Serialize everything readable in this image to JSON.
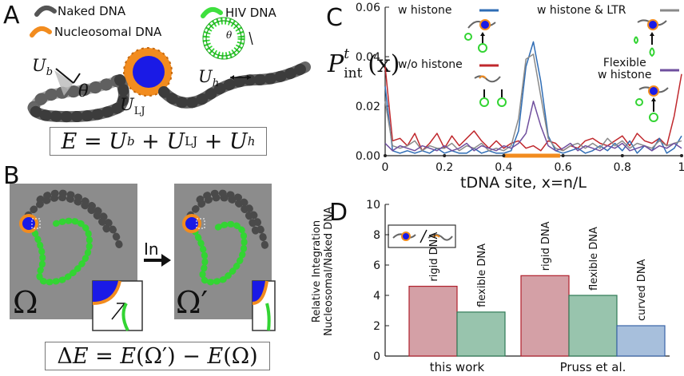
{
  "panel_a": {
    "letter": "A",
    "legend": {
      "naked": "Naked DNA",
      "nucleosomal": "Nucleosomal DNA",
      "hiv": "HIV DNA"
    },
    "labels": {
      "ub": "U",
      "ub_sub": "b",
      "theta": "θ",
      "ulj": "U",
      "ulj_sub": "LJ",
      "uh": "U",
      "uh_sub": "h",
      "small_theta": "θ"
    },
    "equation": "E = U_b + U_LJ + U_h"
  },
  "panel_b": {
    "letter": "B",
    "arrow_label": "In",
    "omega": "Ω",
    "omega_prime": "Ω′",
    "equation": "ΔE = E(Ω′) − E(Ω)"
  },
  "panel_c": {
    "letter": "C",
    "ylabel_main": "P",
    "ylabel_sup": "t",
    "ylabel_sub": "int",
    "ylabel_arg": "(x)",
    "xlabel": "tDNA site, x=n/L",
    "legend": {
      "w_histone": "w histone",
      "wo_histone": "w/o histone",
      "w_histone_ltr": "w histone & LTR",
      "flexible_line1": "Flexible",
      "flexible_line2": "w histone"
    },
    "colors": {
      "w_histone": "#2f6db5",
      "wo_histone": "#c0282d",
      "w_histone_ltr": "#8a8a8a",
      "flexible": "#6f4f9e",
      "highlight": "#f28c1f"
    }
  },
  "panel_d": {
    "letter": "D",
    "ylabel_line1": "Relative Integration",
    "ylabel_line2": "Nucleosomal/Naked DNA"
  },
  "chart_data": [
    {
      "type": "line",
      "xlabel": "tDNA site, x=n/L",
      "ylabel": "P^t_int(x)",
      "xlim": [
        0,
        1
      ],
      "ylim": [
        0,
        0.06
      ],
      "xticks": [
        "0",
        "0.2",
        "0.4",
        "0.6",
        "0.8",
        "1"
      ],
      "yticks": [
        "0.00",
        "0.02",
        "0.04",
        "0.06"
      ],
      "highlight_range": [
        0.4,
        0.59
      ],
      "x": [
        0.0,
        0.025,
        0.05,
        0.075,
        0.1,
        0.125,
        0.15,
        0.175,
        0.2,
        0.225,
        0.25,
        0.275,
        0.3,
        0.325,
        0.35,
        0.375,
        0.4,
        0.425,
        0.45,
        0.475,
        0.5,
        0.525,
        0.55,
        0.575,
        0.6,
        0.625,
        0.65,
        0.675,
        0.7,
        0.725,
        0.75,
        0.775,
        0.8,
        0.825,
        0.85,
        0.875,
        0.9,
        0.925,
        0.95,
        0.975,
        1.0
      ],
      "series": [
        {
          "name": "w/o histone",
          "color": "#c0282d",
          "values": [
            0.036,
            0.006,
            0.007,
            0.004,
            0.009,
            0.002,
            0.005,
            0.009,
            0.003,
            0.008,
            0.004,
            0.007,
            0.01,
            0.006,
            0.003,
            0.006,
            0.003,
            0.005,
            0.006,
            0.003,
            0.004,
            0.002,
            0.006,
            0.005,
            0.002,
            0.004,
            0.003,
            0.006,
            0.007,
            0.005,
            0.004,
            0.006,
            0.008,
            0.004,
            0.009,
            0.006,
            0.005,
            0.007,
            0.004,
            0.016,
            0.033
          ]
        },
        {
          "name": "w histone",
          "color": "#2f6db5",
          "values": [
            0.028,
            0.002,
            0.001,
            0.002,
            0.001,
            0.002,
            0.001,
            0.003,
            0.001,
            0.002,
            0.001,
            0.001,
            0.003,
            0.001,
            0.002,
            0.001,
            0.001,
            0.002,
            0.01,
            0.036,
            0.046,
            0.03,
            0.008,
            0.002,
            0.001,
            0.002,
            0.003,
            0.001,
            0.002,
            0.004,
            0.002,
            0.005,
            0.002,
            0.006,
            0.001,
            0.004,
            0.002,
            0.007,
            0.001,
            0.003,
            0.008
          ]
        },
        {
          "name": "w histone & LTR",
          "color": "#8a8a8a",
          "values": [
            0.022,
            0.004,
            0.003,
            0.004,
            0.006,
            0.002,
            0.004,
            0.003,
            0.003,
            0.005,
            0.002,
            0.004,
            0.003,
            0.005,
            0.002,
            0.003,
            0.002,
            0.004,
            0.015,
            0.039,
            0.041,
            0.024,
            0.007,
            0.003,
            0.002,
            0.004,
            0.005,
            0.003,
            0.005,
            0.003,
            0.007,
            0.004,
            0.006,
            0.003,
            0.005,
            0.004,
            0.003,
            0.006,
            0.004,
            0.005,
            0.006
          ]
        },
        {
          "name": "Flexible w histone",
          "color": "#6f4f9e",
          "values": [
            0.005,
            0.002,
            0.004,
            0.003,
            0.002,
            0.004,
            0.003,
            0.002,
            0.004,
            0.002,
            0.003,
            0.005,
            0.002,
            0.004,
            0.003,
            0.002,
            0.004,
            0.003,
            0.005,
            0.009,
            0.022,
            0.012,
            0.004,
            0.002,
            0.003,
            0.005,
            0.002,
            0.004,
            0.003,
            0.002,
            0.004,
            0.003,
            0.005,
            0.002,
            0.003,
            0.004,
            0.002,
            0.004,
            0.003,
            0.005,
            0.003
          ]
        }
      ]
    },
    {
      "type": "bar",
      "ylabel": "Relative Integration Nucleosomal/Naked DNA",
      "ylim": [
        0,
        10
      ],
      "yticks": [
        "0",
        "2",
        "4",
        "6",
        "8",
        "10"
      ],
      "groups": [
        "this work",
        "Pruss et al."
      ],
      "bars": [
        {
          "group": "this work",
          "label": "rigid DNA",
          "value": 4.6,
          "color": "#d4a0a6",
          "edge": "#b0202c"
        },
        {
          "group": "this work",
          "label": "flexible DNA",
          "value": 2.9,
          "color": "#98c4ad",
          "edge": "#2f7a56"
        },
        {
          "group": "Pruss et al.",
          "label": "rigid DNA",
          "value": 5.3,
          "color": "#d4a0a6",
          "edge": "#b0202c"
        },
        {
          "group": "Pruss et al.",
          "label": "flexible DNA",
          "value": 4.0,
          "color": "#98c4ad",
          "edge": "#2f7a56"
        },
        {
          "group": "Pruss et al.",
          "label": "curved DNA",
          "value": 2.0,
          "color": "#a7bfdc",
          "edge": "#3a64a8"
        }
      ]
    }
  ]
}
